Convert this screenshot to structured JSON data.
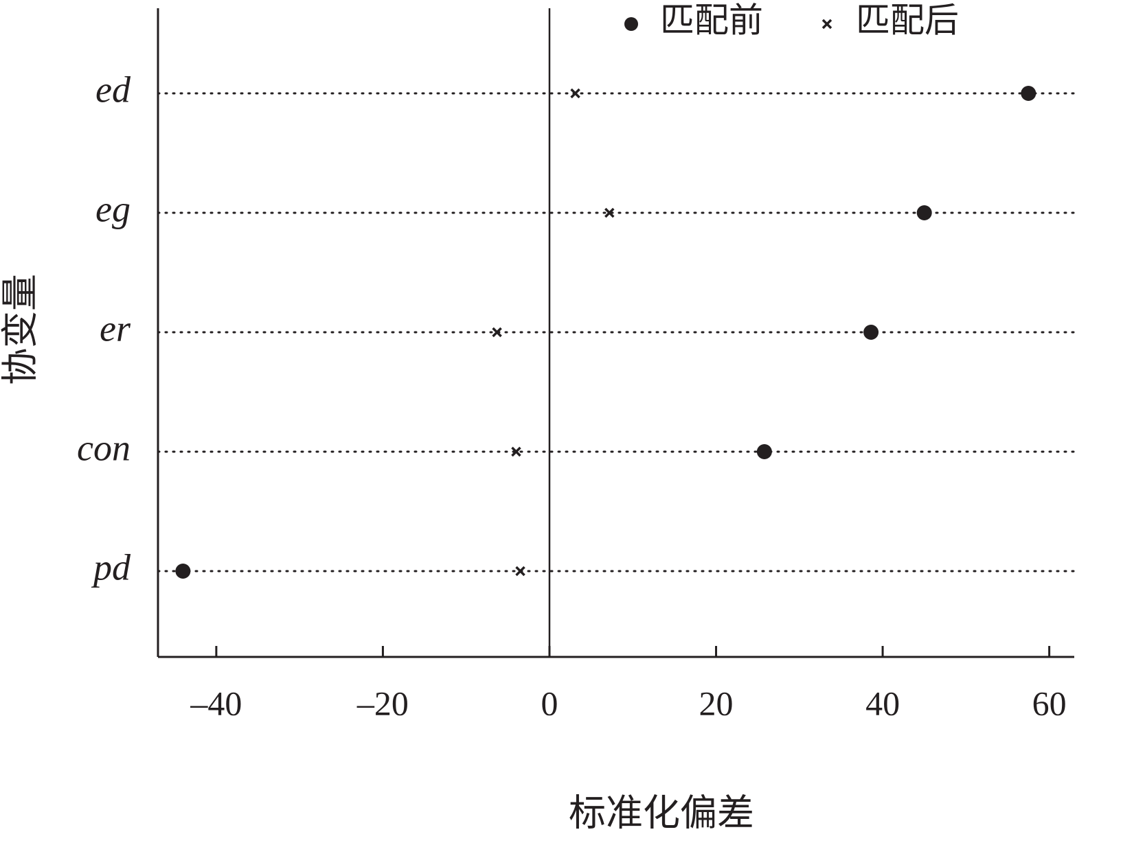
{
  "chart_data": {
    "type": "dot",
    "x_label": "标准化偏差",
    "y_label": "协变量",
    "categories": [
      "ed",
      "eg",
      "er",
      "con",
      "pd"
    ],
    "series": [
      {
        "name": "匹配前",
        "color": "#231f20",
        "marker": "circle",
        "values": [
          57.5,
          45.0,
          38.6,
          25.8,
          -44.0
        ]
      },
      {
        "name": "匹配后",
        "color": "#231f20",
        "marker": "x",
        "values": [
          3.1,
          7.2,
          -6.3,
          -4.0,
          -3.5
        ]
      }
    ],
    "xlim": [
      -47,
      63
    ],
    "xticks": [
      {
        "value": -40,
        "label": "–40"
      },
      {
        "value": -20,
        "label": "–20"
      },
      0,
      20,
      40,
      60
    ],
    "grid": true,
    "legend": "top"
  }
}
